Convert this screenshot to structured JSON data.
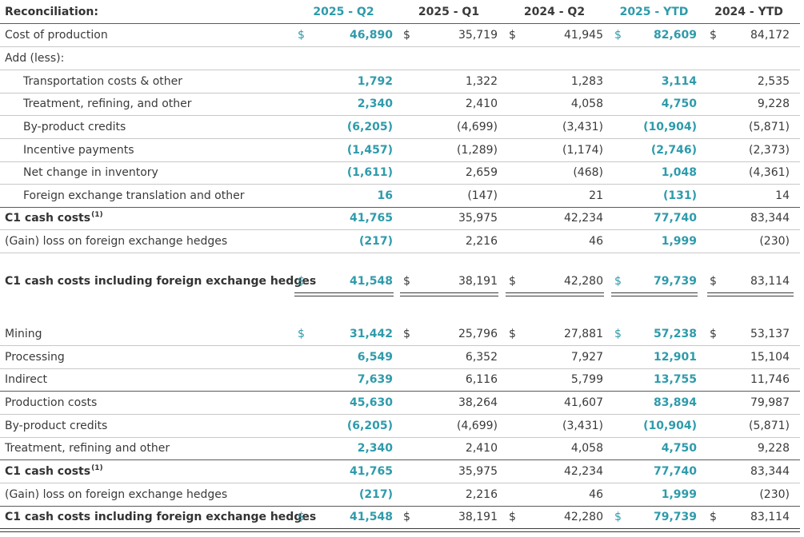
{
  "header": {
    "title": "Reconciliation:",
    "columns": [
      "2025 - Q2",
      "2025 - Q1",
      "2024 - Q2",
      "2025 - YTD",
      "2024 - YTD"
    ]
  },
  "currency_symbol": "$",
  "colors": {
    "accent": "#2e9bab",
    "text": "#3a3a3a"
  },
  "section1": {
    "cost_of_production": {
      "label": "Cost of production",
      "values": [
        "46,890",
        "35,719",
        "41,945",
        "82,609",
        "84,172"
      ]
    },
    "add_less": {
      "label": "Add (less):"
    },
    "transportation": {
      "label": "Transportation costs & other",
      "values": [
        "1,792",
        "1,322",
        "1,283",
        "3,114",
        "2,535"
      ]
    },
    "treatment": {
      "label": "Treatment, refining, and other",
      "values": [
        "2,340",
        "2,410",
        "4,058",
        "4,750",
        "9,228"
      ]
    },
    "byproduct": {
      "label": "By-product credits",
      "values": [
        "(6,205)",
        "(4,699)",
        "(3,431)",
        "(10,904)",
        "(5,871)"
      ]
    },
    "incentive": {
      "label": "Incentive payments",
      "values": [
        "(1,457)",
        "(1,289)",
        "(1,174)",
        "(2,746)",
        "(2,373)"
      ]
    },
    "inventory": {
      "label": "Net change in inventory",
      "values": [
        "(1,611)",
        "2,659",
        "(468)",
        "1,048",
        "(4,361)"
      ]
    },
    "fx_translation": {
      "label": "Foreign exchange translation and other",
      "values": [
        "16",
        "(147)",
        "21",
        "(131)",
        "14"
      ]
    },
    "c1": {
      "label": "C1 cash costs",
      "footnote": "(1)",
      "values": [
        "41,765",
        "35,975",
        "42,234",
        "77,740",
        "83,344"
      ]
    },
    "hedge": {
      "label": "(Gain) loss on foreign exchange hedges",
      "values": [
        "(217)",
        "2,216",
        "46",
        "1,999",
        "(230)"
      ]
    },
    "c1_incl": {
      "label": "C1 cash costs including foreign exchange hedges",
      "values": [
        "41,548",
        "38,191",
        "42,280",
        "79,739",
        "83,114"
      ]
    }
  },
  "section2": {
    "mining": {
      "label": "Mining",
      "values": [
        "31,442",
        "25,796",
        "27,881",
        "57,238",
        "53,137"
      ]
    },
    "processing": {
      "label": "Processing",
      "values": [
        "6,549",
        "6,352",
        "7,927",
        "12,901",
        "15,104"
      ]
    },
    "indirect": {
      "label": "Indirect",
      "values": [
        "7,639",
        "6,116",
        "5,799",
        "13,755",
        "11,746"
      ]
    },
    "production_costs": {
      "label": "Production costs",
      "values": [
        "45,630",
        "38,264",
        "41,607",
        "83,894",
        "79,987"
      ]
    },
    "byproduct": {
      "label": "By-product credits",
      "values": [
        "(6,205)",
        "(4,699)",
        "(3,431)",
        "(10,904)",
        "(5,871)"
      ]
    },
    "treatment": {
      "label": "Treatment, refining and other",
      "values": [
        "2,340",
        "2,410",
        "4,058",
        "4,750",
        "9,228"
      ]
    },
    "c1": {
      "label": "C1 cash costs",
      "footnote": "(1)",
      "values": [
        "41,765",
        "35,975",
        "42,234",
        "77,740",
        "83,344"
      ]
    },
    "hedge": {
      "label": "(Gain) loss on foreign exchange hedges",
      "values": [
        "(217)",
        "2,216",
        "46",
        "1,999",
        "(230)"
      ]
    },
    "c1_incl": {
      "label": "C1 cash costs including foreign exchange hedges",
      "values": [
        "41,548",
        "38,191",
        "42,280",
        "79,739",
        "83,114"
      ]
    }
  }
}
